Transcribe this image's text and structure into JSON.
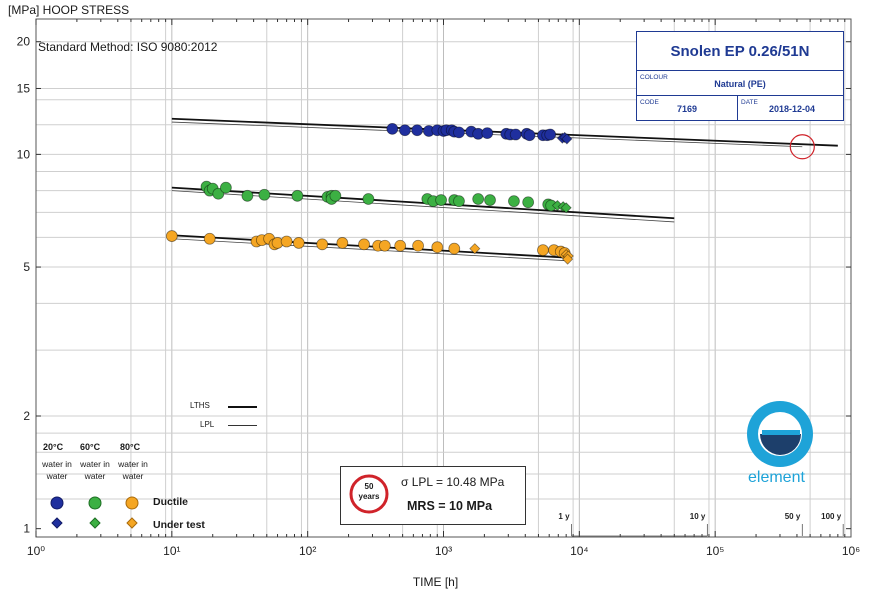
{
  "y_axis_title": "[MPa] HOOP STRESS",
  "x_axis_title": "TIME [h]",
  "standard_method": "Standard Method: ISO 9080:2012",
  "product": {
    "name": "Snolen EP 0.26/51N",
    "colour_label": "COLOUR",
    "colour_value": "Natural (PE)",
    "code_label": "CODE",
    "code_value": "7169",
    "date_label": "DATE",
    "date_value": "2018-12-04"
  },
  "line_legend": {
    "lths": "LTHS",
    "lpl": "LPL"
  },
  "marker_legend": {
    "temps": [
      "20°C",
      "60°C",
      "80°C"
    ],
    "medium": [
      "water in water",
      "water in water",
      "water in water"
    ],
    "ductile_label": "Ductile",
    "under_test_label": "Under test",
    "colors": [
      "#1f2f9e",
      "#3cb043",
      "#f5a623"
    ]
  },
  "badge": {
    "line1": "50",
    "line2": "years"
  },
  "lpl_text": "σ LPL = 10.48 MPa",
  "mrs_text": "MRS =  10 MPa",
  "time_markers": [
    "1 y",
    "10 y",
    "50  y",
    "100  y"
  ],
  "logo_text": "element",
  "chart_data": {
    "type": "scatter",
    "x_scale": "log",
    "y_scale": "log",
    "xlim": [
      1,
      1000000
    ],
    "ylim": [
      0.95,
      23
    ],
    "x_ticks": [
      1,
      10,
      100,
      1000,
      10000,
      100000,
      1000000
    ],
    "x_tick_labels": [
      "10⁰",
      "10¹",
      "10²",
      "10³",
      "10⁴",
      "10⁵",
      "10⁶"
    ],
    "y_ticks": [
      1,
      2,
      5,
      10,
      15,
      20
    ],
    "y_tick_labels": [
      "1",
      "2",
      "5",
      "10",
      "15",
      "20"
    ],
    "grid": true,
    "target_point": {
      "x": 438000,
      "y": 10.48
    },
    "regression_lines": [
      {
        "temp": "20°C",
        "lths": [
          [
            10,
            12.45
          ],
          [
            800000,
            10.55
          ]
        ],
        "lpl": [
          [
            10,
            12.2
          ],
          [
            438000,
            10.48
          ]
        ]
      },
      {
        "temp": "60°C",
        "lths": [
          [
            10,
            8.15
          ],
          [
            50000,
            6.75
          ]
        ],
        "lpl": [
          [
            10,
            8.0
          ],
          [
            50000,
            6.6
          ]
        ]
      },
      {
        "temp": "80°C",
        "lths": [
          [
            10,
            6.08
          ],
          [
            8000,
            5.3
          ]
        ],
        "lpl": [
          [
            10,
            5.95
          ],
          [
            8000,
            5.2
          ]
        ]
      }
    ],
    "series": [
      {
        "name": "20°C Ductile",
        "color": "#1f2f9e",
        "marker": "circle",
        "points": [
          [
            420,
            11.7
          ],
          [
            520,
            11.6
          ],
          [
            640,
            11.6
          ],
          [
            780,
            11.55
          ],
          [
            900,
            11.6
          ],
          [
            1000,
            11.55
          ],
          [
            1050,
            11.6
          ],
          [
            1150,
            11.6
          ],
          [
            1200,
            11.5
          ],
          [
            1300,
            11.45
          ],
          [
            1600,
            11.5
          ],
          [
            1800,
            11.35
          ],
          [
            2100,
            11.4
          ],
          [
            2900,
            11.35
          ],
          [
            3100,
            11.3
          ],
          [
            3400,
            11.3
          ],
          [
            4100,
            11.35
          ],
          [
            4300,
            11.25
          ],
          [
            5400,
            11.25
          ],
          [
            5800,
            11.25
          ],
          [
            6100,
            11.3
          ]
        ]
      },
      {
        "name": "20°C Under test",
        "color": "#1f2f9e",
        "marker": "diamond",
        "points": [
          [
            7500,
            11.05
          ],
          [
            7800,
            11.1
          ],
          [
            8100,
            11.0
          ]
        ]
      },
      {
        "name": "60°C Ductile",
        "color": "#3cb043",
        "marker": "circle",
        "points": [
          [
            18,
            8.2
          ],
          [
            19,
            8.0
          ],
          [
            20,
            8.1
          ],
          [
            22,
            7.85
          ],
          [
            25,
            8.15
          ],
          [
            36,
            7.75
          ],
          [
            48,
            7.8
          ],
          [
            84,
            7.75
          ],
          [
            140,
            7.7
          ],
          [
            150,
            7.75
          ],
          [
            150,
            7.6
          ],
          [
            160,
            7.75
          ],
          [
            280,
            7.6
          ],
          [
            760,
            7.6
          ],
          [
            840,
            7.5
          ],
          [
            960,
            7.55
          ],
          [
            1200,
            7.55
          ],
          [
            1300,
            7.5
          ],
          [
            1800,
            7.6
          ],
          [
            2200,
            7.55
          ],
          [
            3300,
            7.5
          ],
          [
            4200,
            7.45
          ],
          [
            5900,
            7.35
          ],
          [
            6200,
            7.3
          ]
        ]
      },
      {
        "name": "60°C Under test",
        "color": "#3cb043",
        "marker": "diamond",
        "points": [
          [
            6900,
            7.3
          ],
          [
            7600,
            7.25
          ],
          [
            8000,
            7.2
          ]
        ]
      },
      {
        "name": "80°C Ductile",
        "color": "#f5a623",
        "marker": "circle",
        "points": [
          [
            10,
            6.05
          ],
          [
            19,
            5.95
          ],
          [
            42,
            5.85
          ],
          [
            46,
            5.9
          ],
          [
            52,
            5.95
          ],
          [
            57,
            5.75
          ],
          [
            60,
            5.8
          ],
          [
            70,
            5.85
          ],
          [
            86,
            5.8
          ],
          [
            128,
            5.75
          ],
          [
            180,
            5.8
          ],
          [
            260,
            5.75
          ],
          [
            330,
            5.7
          ],
          [
            370,
            5.7
          ],
          [
            480,
            5.7
          ],
          [
            650,
            5.7
          ],
          [
            900,
            5.65
          ],
          [
            1200,
            5.6
          ],
          [
            5400,
            5.55
          ],
          [
            6500,
            5.55
          ],
          [
            7300,
            5.5
          ],
          [
            7800,
            5.45
          ]
        ]
      },
      {
        "name": "80°C Under test",
        "color": "#f5a623",
        "marker": "diamond",
        "points": [
          [
            1700,
            5.6
          ],
          [
            8000,
            5.4
          ],
          [
            8300,
            5.35
          ],
          [
            8200,
            5.25
          ]
        ]
      }
    ]
  }
}
